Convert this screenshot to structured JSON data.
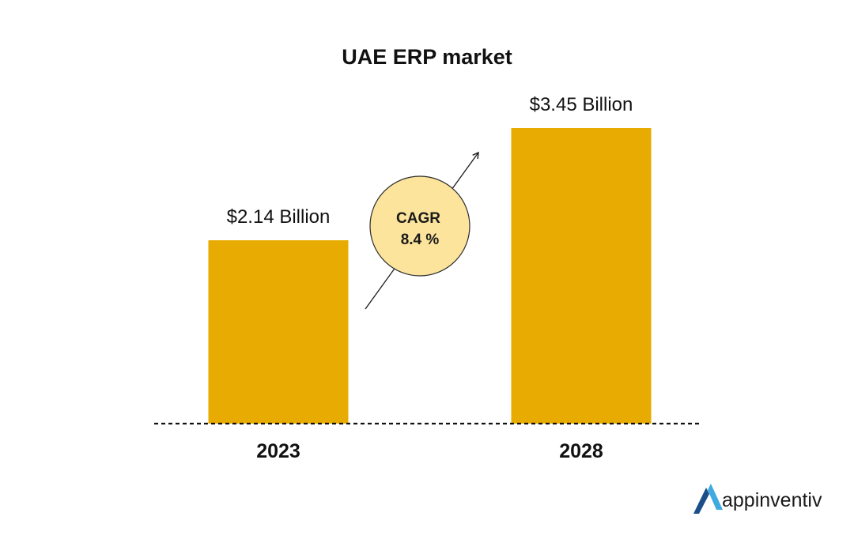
{
  "colors": {
    "bar": "#E8AB02",
    "badge_fill": "#FCE49C",
    "badge_stroke": "#2a2a2a",
    "text": "#111111",
    "baseline": "#111111",
    "logo_dark": "#1B4F8A",
    "logo_light": "#3FA9E0"
  },
  "chart_data": {
    "type": "bar",
    "title": "UAE ERP market",
    "categories": [
      "2023",
      "2028"
    ],
    "values": [
      2.14,
      3.45
    ],
    "value_labels": [
      "$2.14 Billion",
      "$3.45 Billion"
    ],
    "unit": "Billion USD",
    "ylim": [
      0,
      3.45
    ],
    "grid": false,
    "legend": "none",
    "annotation": {
      "line1": "CAGR",
      "line2": "8.4 %",
      "value_percent": 8.4
    }
  },
  "brand": {
    "name": "appinventiv",
    "icon": "appinventiv-logo-icon"
  }
}
